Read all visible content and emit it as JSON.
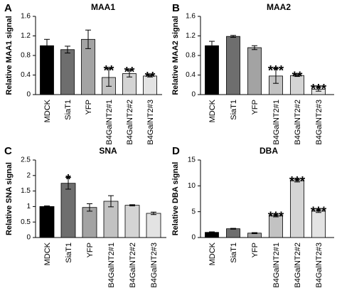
{
  "chart_data": [
    {
      "type": "bar",
      "panel": "A",
      "title": "MAA1",
      "ylabel": "Relative MAA1 signal",
      "xlabel": "",
      "categories": [
        "MDCK",
        "SiaT1",
        "YFP",
        "B4GalNT2#1",
        "B4GalNT2#2",
        "B4GalNT2#3"
      ],
      "values": [
        1.0,
        0.92,
        1.13,
        0.35,
        0.43,
        0.38
      ],
      "errors": [
        0.13,
        0.07,
        0.19,
        0.18,
        0.07,
        0.02
      ],
      "significance": [
        "",
        "",
        "",
        "**",
        "**",
        "**"
      ],
      "ylim": [
        0,
        1.6
      ],
      "yticks": [
        "0",
        "0.4",
        "0.8",
        "1.2",
        "1.6"
      ]
    },
    {
      "type": "bar",
      "panel": "B",
      "title": "MAA2",
      "ylabel": "Relative MAA2 signal",
      "xlabel": "",
      "categories": [
        "MDCK",
        "SiaT1",
        "YFP",
        "B4GalNT2#1",
        "B4GalNT2#2",
        "B4GalNT2#3"
      ],
      "values": [
        1.0,
        1.19,
        0.96,
        0.38,
        0.39,
        0.11
      ],
      "errors": [
        0.09,
        0.02,
        0.04,
        0.15,
        0.02,
        0.04
      ],
      "significance": [
        "",
        "",
        "",
        "***",
        "**",
        "***"
      ],
      "ylim": [
        0,
        1.6
      ],
      "yticks": [
        "0",
        "0.4",
        "0.8",
        "1.2",
        "1.6"
      ]
    },
    {
      "type": "bar",
      "panel": "C",
      "title": "SNA",
      "ylabel": "Relative SNA signal",
      "xlabel": "",
      "categories": [
        "MDCK",
        "SiaT1",
        "YFP",
        "B4GalNT2#1",
        "B4GalNT2#2",
        "B4GalNT2#3"
      ],
      "values": [
        1.0,
        1.75,
        0.97,
        1.17,
        1.04,
        0.78
      ],
      "errors": [
        0.02,
        0.19,
        0.12,
        0.18,
        0.02,
        0.04
      ],
      "significance": [
        "",
        "*",
        "",
        "",
        "",
        ""
      ],
      "ylim": [
        0,
        2.5
      ],
      "yticks": [
        "0",
        "0.5",
        "1",
        "1.5",
        "2",
        "2.5"
      ]
    },
    {
      "type": "bar",
      "panel": "D",
      "title": "DBA",
      "ylabel": "Relative DBA signal",
      "xlabel": "",
      "categories": [
        "MDCK",
        "SiaT1",
        "YFP",
        "B4GalNT2#1",
        "B4GalNT2#2",
        "B4GalNT2#3"
      ],
      "values": [
        1.0,
        1.7,
        0.85,
        4.2,
        11.0,
        5.1
      ],
      "errors": [
        0.1,
        0.08,
        0.1,
        0.2,
        0.25,
        0.25
      ],
      "significance": [
        "",
        "",
        "",
        "***",
        "***",
        "***"
      ],
      "ylim": [
        0,
        15
      ],
      "yticks": [
        "0",
        "5",
        "10",
        "15"
      ]
    }
  ],
  "colors": {
    "bar_fills": [
      "#000000",
      "#6e6e6e",
      "#a3a3a3",
      "#c2c2c2",
      "#d4d4d4",
      "#e3e3e3"
    ],
    "bar_stroke": "#000000",
    "axis": "#000000"
  }
}
